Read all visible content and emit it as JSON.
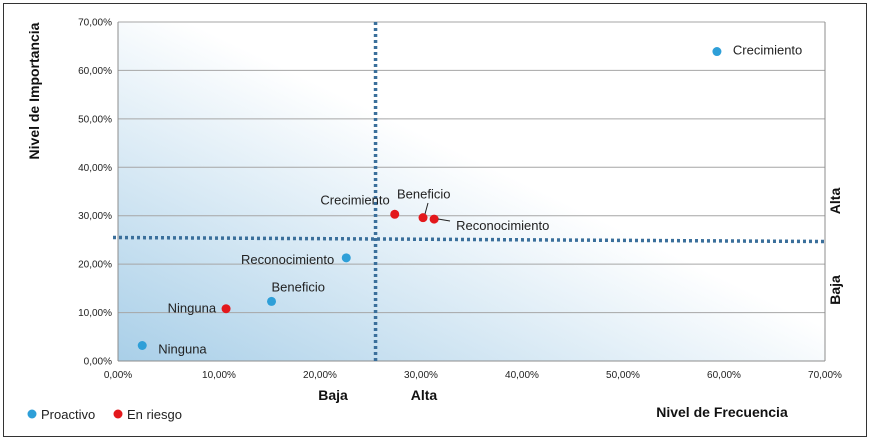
{
  "chart_data": {
    "type": "scatter",
    "xlabel": "Nivel de Frecuencia",
    "ylabel": "Nivel de Importancia",
    "xlim": [
      0,
      70
    ],
    "ylim": [
      0,
      70
    ],
    "x_ticks": [
      "0,00%",
      "10,00%",
      "20,00%",
      "30,00%",
      "40,00%",
      "50,00%",
      "60,00%",
      "70,00%"
    ],
    "y_ticks": [
      "0,00%",
      "10,00%",
      "20,00%",
      "30,00%",
      "40,00%",
      "50,00%",
      "60,00%",
      "70,00%"
    ],
    "divider_x": 25.5,
    "divider_y": 25.5,
    "x_regions": [
      "Baja",
      "Alta"
    ],
    "y_regions": [
      "Alta",
      "Baja"
    ],
    "grid": true,
    "legend_position": "bottom-left",
    "series": [
      {
        "name": "Proactivo",
        "color": "#2E9FD8",
        "points": [
          {
            "label": "Crecimiento",
            "x": 59.3,
            "y": 63.9
          },
          {
            "label": "Reconocimiento",
            "x": 22.6,
            "y": 21.3
          },
          {
            "label": "Beneficio",
            "x": 15.2,
            "y": 12.3
          },
          {
            "label": "Ninguna",
            "x": 2.4,
            "y": 3.2
          }
        ]
      },
      {
        "name": "En riesgo",
        "color": "#E3181C",
        "points": [
          {
            "label": "Crecimiento",
            "x": 27.4,
            "y": 30.3
          },
          {
            "label": "Beneficio",
            "x": 30.2,
            "y": 29.6
          },
          {
            "label": "Reconocimiento",
            "x": 31.3,
            "y": 29.3
          },
          {
            "label": "Ninguna",
            "x": 10.7,
            "y": 10.8
          }
        ]
      }
    ]
  }
}
